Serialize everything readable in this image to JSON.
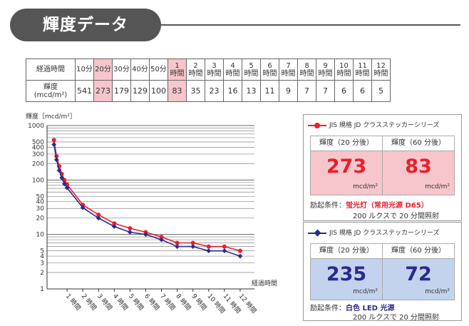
{
  "header": {
    "title": "輝度データ"
  },
  "table": {
    "row1_label": "経過時間",
    "row2_label_line1": "輝度",
    "row2_label_line2": "(mcd/m²)",
    "columns": [
      {
        "l1": "10分",
        "l2": "",
        "value": "541",
        "hl": false
      },
      {
        "l1": "20分",
        "l2": "",
        "value": "273",
        "hl": true
      },
      {
        "l1": "30分",
        "l2": "",
        "value": "179",
        "hl": false
      },
      {
        "l1": "40分",
        "l2": "",
        "value": "129",
        "hl": false
      },
      {
        "l1": "50分",
        "l2": "",
        "value": "100",
        "hl": false
      },
      {
        "l1": "1",
        "l2": "時間",
        "value": "83",
        "hl": true
      },
      {
        "l1": "2",
        "l2": "時間",
        "value": "35",
        "hl": false
      },
      {
        "l1": "3",
        "l2": "時間",
        "value": "23",
        "hl": false
      },
      {
        "l1": "4",
        "l2": "時間",
        "value": "16",
        "hl": false
      },
      {
        "l1": "5",
        "l2": "時間",
        "value": "13",
        "hl": false
      },
      {
        "l1": "6",
        "l2": "時間",
        "value": "11",
        "hl": false
      },
      {
        "l1": "7",
        "l2": "時間",
        "value": "9",
        "hl": false
      },
      {
        "l1": "8",
        "l2": "時間",
        "value": "7",
        "hl": false
      },
      {
        "l1": "9",
        "l2": "時間",
        "value": "7",
        "hl": false
      },
      {
        "l1": "10",
        "l2": "時間",
        "value": "6",
        "hl": false
      },
      {
        "l1": "11",
        "l2": "時間",
        "value": "6",
        "hl": false
      },
      {
        "l1": "12",
        "l2": "時間",
        "value": "5",
        "hl": false
      }
    ]
  },
  "chart_data": {
    "type": "line",
    "ylabel": "輝度［mcd/m²］",
    "xlabel": "経過時間",
    "yscale": "log",
    "ylim": [
      1,
      1000
    ],
    "y_ticks": [
      1000,
      500,
      400,
      300,
      200,
      100,
      50,
      40,
      30,
      20,
      10,
      5,
      4,
      3,
      2,
      1
    ],
    "x_ticks": [
      "1 時間",
      "2 時間",
      "3 時間",
      "4 時間",
      "5 時間",
      "6 時間",
      "7 時間",
      "8 時間",
      "9 時間",
      "10 時間",
      "11 時間",
      "12 時間"
    ],
    "x_hours": [
      0.1667,
      0.3333,
      0.5,
      0.6667,
      0.8333,
      1,
      2,
      3,
      4,
      5,
      6,
      7,
      8,
      9,
      10,
      11,
      12
    ],
    "series": [
      {
        "values": [
          541,
          273,
          179,
          129,
          100,
          83,
          35,
          23,
          16,
          13,
          11,
          9,
          7,
          7,
          6,
          6,
          5
        ],
        "color": "#e8202c",
        "marker": "circle"
      },
      {
        "values": [
          450,
          235,
          150,
          110,
          85,
          72,
          31,
          20,
          14,
          11,
          10,
          8,
          6,
          6,
          5,
          5,
          4
        ],
        "color": "#2b2a8c",
        "marker": "diamond"
      }
    ]
  },
  "panel_red": {
    "legend": "JIS 規格 JD クラスステッカーシリーズ",
    "head_left": "輝度（20 分後）",
    "head_right": "輝度（60 分後）",
    "value_left": "273",
    "value_right": "83",
    "unit": "mcd/m²",
    "cond_prefix": "励起条件：",
    "cond_highlight": "蛍光灯（常用光源 D65）",
    "cond_line2": "200 ルクスで 20 分間照射",
    "color": "#e8202c",
    "bg": "#f6c6cc"
  },
  "panel_blue": {
    "legend": "JIS 規格 JD クラスステッカーシリーズ",
    "head_left": "輝度（20 分後）",
    "head_right": "輝度（60 分後）",
    "value_left": "235",
    "value_right": "72",
    "unit": "mcd/m²",
    "cond_prefix": "励起条件：",
    "cond_highlight": "白色 LED 光源",
    "cond_line2": "200 ルクスで 20 分間照射",
    "color": "#2b2a8c",
    "bg": "#c3d3ee"
  }
}
